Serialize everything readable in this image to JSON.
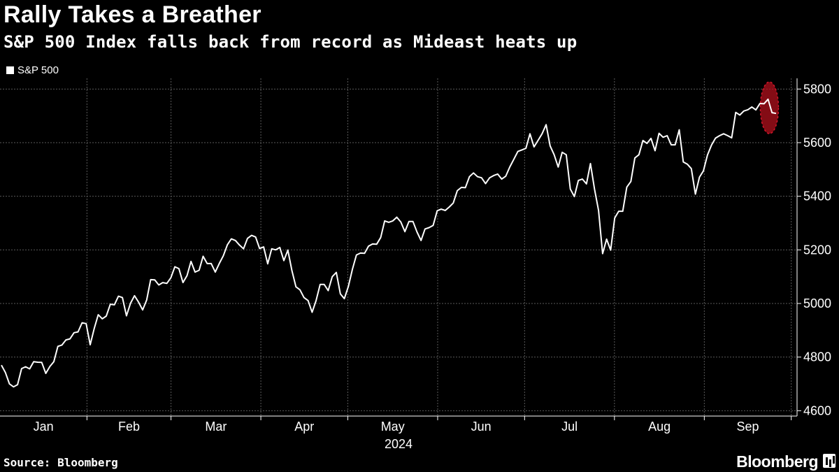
{
  "title": "Rally Takes a Breather",
  "subtitle": "S&P 500 Index falls back from record as Mideast heats up",
  "legend": {
    "label": "S&P 500"
  },
  "source": "Source: Bloomberg",
  "brand": "Bloomberg",
  "colors": {
    "background": "#000000",
    "line": "#ffffff",
    "grid": "#5a5a5a",
    "highlight": "#b0101c"
  },
  "chart_data": {
    "type": "line",
    "series": [
      {
        "name": "S&P 500",
        "values": [
          4770,
          4742,
          4700,
          4689,
          4697,
          4757,
          4764,
          4756,
          4783,
          4781,
          4780,
          4739,
          4765,
          4783,
          4840,
          4845,
          4864,
          4868,
          4891,
          4894,
          4928,
          4925,
          4846,
          4906,
          4958,
          4943,
          4953,
          4997,
          4995,
          5027,
          5022,
          4954,
          5001,
          5029,
          5005,
          4976,
          5013,
          5089,
          5088,
          5069,
          5078,
          5075,
          5096,
          5137,
          5130,
          5078,
          5104,
          5157,
          5117,
          5124,
          5176,
          5149,
          5149,
          5117,
          5149,
          5178,
          5219,
          5241,
          5235,
          5218,
          5204,
          5243,
          5254,
          5248,
          5205,
          5211,
          5148,
          5204,
          5200,
          5209,
          5160,
          5199,
          5123,
          5062,
          5051,
          5022,
          5011,
          4967,
          5011,
          5071,
          5071,
          5048,
          5100,
          5116,
          5036,
          5018,
          5064,
          5128,
          5181,
          5188,
          5187,
          5214,
          5222,
          5221,
          5246,
          5308,
          5303,
          5308,
          5322,
          5304,
          5268,
          5306,
          5306,
          5267,
          5235,
          5278,
          5283,
          5291,
          5346,
          5352,
          5347,
          5360,
          5375,
          5421,
          5433,
          5432,
          5473,
          5487,
          5473,
          5469,
          5447,
          5469,
          5477,
          5483,
          5464,
          5475,
          5509,
          5538,
          5567,
          5573,
          5579,
          5633,
          5584,
          5608,
          5633,
          5667,
          5588,
          5555,
          5509,
          5564,
          5555,
          5427,
          5399,
          5459,
          5464,
          5446,
          5522,
          5427,
          5347,
          5186,
          5240,
          5199,
          5319,
          5344,
          5344,
          5434,
          5455,
          5543,
          5555,
          5608,
          5597,
          5616,
          5570,
          5635,
          5620,
          5626,
          5592,
          5592,
          5648,
          5528,
          5520,
          5503,
          5408,
          5471,
          5495,
          5554,
          5591,
          5617,
          5626,
          5633,
          5626,
          5618,
          5713,
          5703,
          5718,
          5723,
          5733,
          5722,
          5746,
          5745,
          5762,
          5712,
          5709
        ]
      }
    ],
    "x_start": "2024-01-02",
    "x_end": "2024-10-03",
    "x_year_label": "2024",
    "x_tick_labels": [
      "Jan",
      "Feb",
      "Mar",
      "Apr",
      "May",
      "Jun",
      "Jul",
      "Aug",
      "Sep"
    ],
    "y_ticks": [
      4600,
      4800,
      5000,
      5200,
      5400,
      5600,
      5800
    ],
    "ylim": [
      4580,
      5840
    ],
    "grid": true,
    "legend_position": "top-left",
    "y_axis_side": "right"
  }
}
